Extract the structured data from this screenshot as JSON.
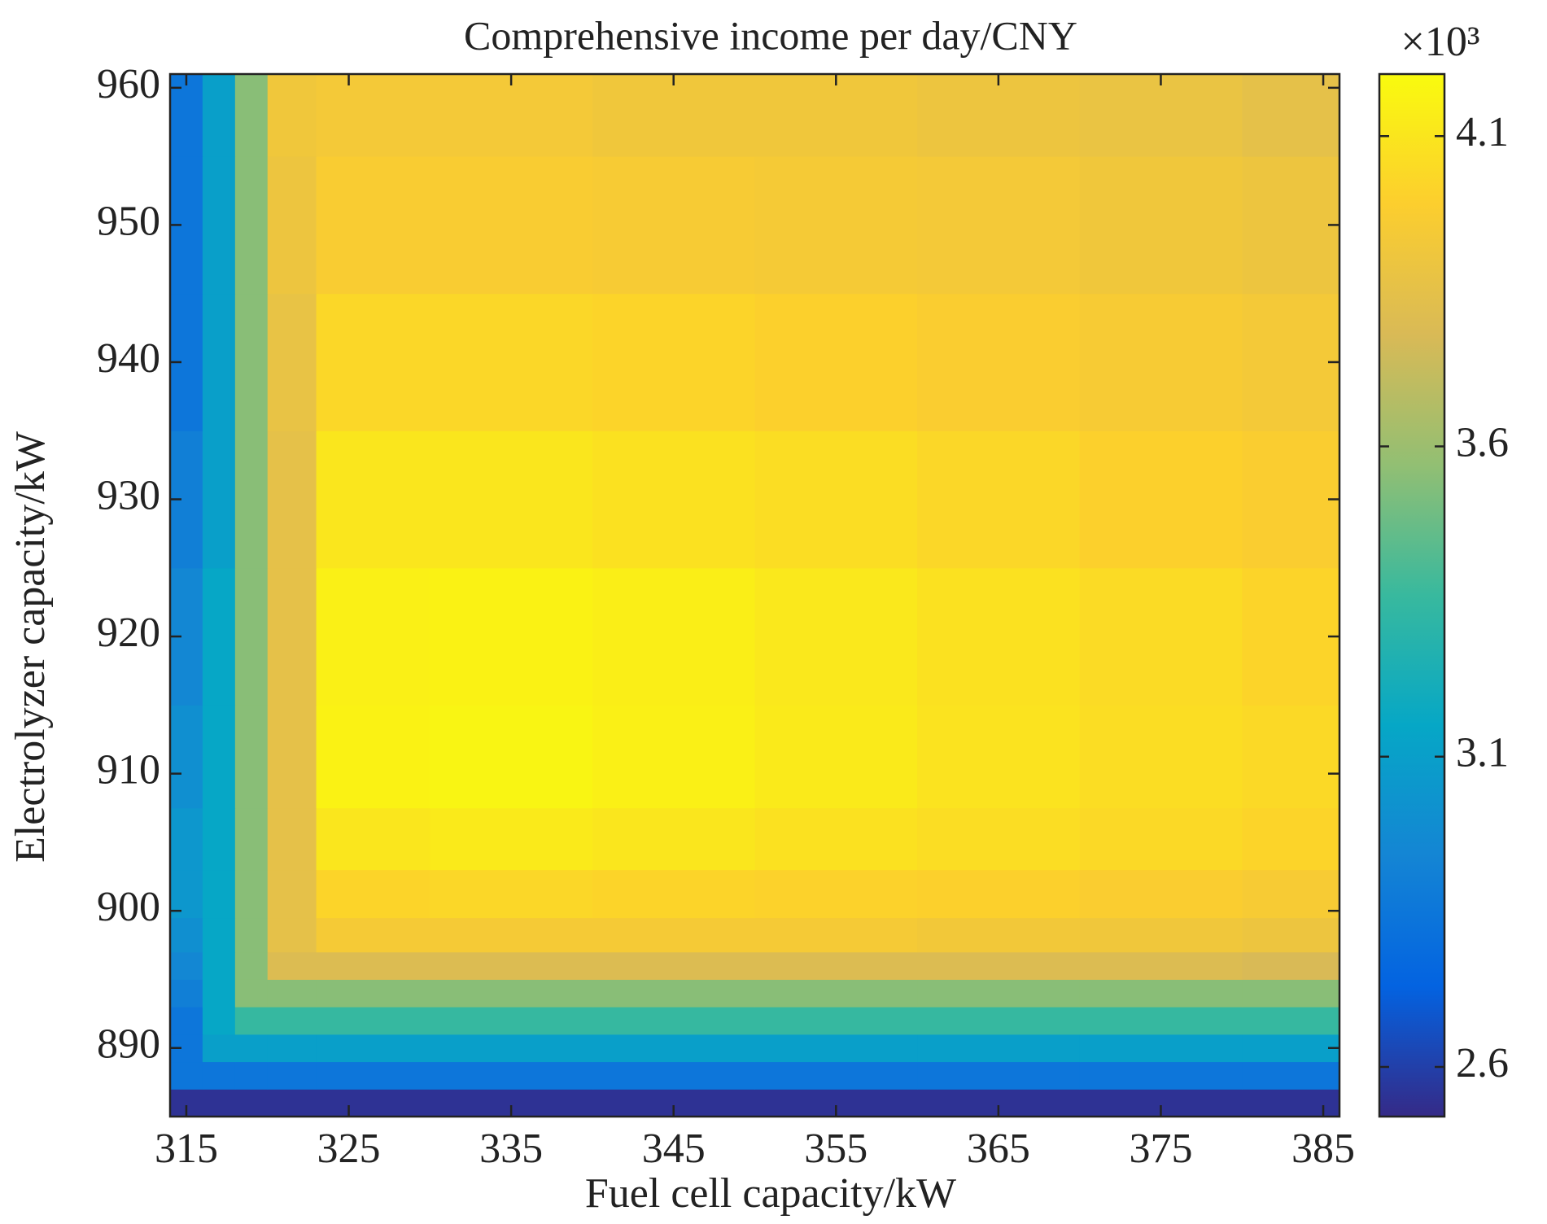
{
  "chart_data": {
    "type": "heatmap",
    "title": "Comprehensive income per day/CNY",
    "x_label": "Fuel cell capacity/kW",
    "y_label": "Electrolyzer capacity/kW",
    "colorbar_multiplier": "×10³",
    "x": [
      315,
      317,
      319,
      321,
      325,
      335,
      345,
      355,
      365,
      375,
      385
    ],
    "y": [
      886,
      888,
      890,
      892,
      894,
      896,
      898,
      901,
      905,
      910,
      920,
      930,
      940,
      950,
      960
    ],
    "values": [
      [
        2.55,
        2.55,
        2.55,
        2.55,
        2.55,
        2.55,
        2.55,
        2.55,
        2.55,
        2.55,
        2.55
      ],
      [
        2.85,
        2.85,
        2.85,
        2.85,
        2.85,
        2.85,
        2.85,
        2.85,
        2.85,
        2.85,
        2.85
      ],
      [
        2.85,
        3.1,
        3.1,
        3.1,
        3.1,
        3.1,
        3.1,
        3.1,
        3.1,
        3.1,
        3.1
      ],
      [
        2.85,
        3.15,
        3.35,
        3.35,
        3.35,
        3.35,
        3.35,
        3.35,
        3.35,
        3.35,
        3.35
      ],
      [
        2.9,
        3.15,
        3.55,
        3.55,
        3.55,
        3.55,
        3.55,
        3.55,
        3.55,
        3.55,
        3.55
      ],
      [
        2.95,
        3.15,
        3.55,
        3.8,
        3.8,
        3.8,
        3.8,
        3.8,
        3.8,
        3.8,
        3.78
      ],
      [
        3.0,
        3.15,
        3.55,
        3.85,
        3.95,
        3.95,
        3.95,
        3.95,
        3.93,
        3.92,
        3.9
      ],
      [
        3.05,
        3.15,
        3.55,
        3.85,
        4.02,
        4.03,
        4.02,
        4.01,
        4.0,
        3.98,
        3.96
      ],
      [
        3.05,
        3.15,
        3.55,
        3.85,
        4.1,
        4.12,
        4.1,
        4.08,
        4.06,
        4.04,
        4.02
      ],
      [
        3.0,
        3.15,
        3.55,
        3.85,
        4.16,
        4.17,
        4.15,
        4.12,
        4.09,
        4.06,
        4.04
      ],
      [
        2.95,
        3.15,
        3.55,
        3.85,
        4.15,
        4.16,
        4.14,
        4.11,
        4.08,
        4.05,
        4.02
      ],
      [
        2.9,
        3.1,
        3.55,
        3.85,
        4.1,
        4.1,
        4.08,
        4.06,
        4.03,
        4.0,
        3.98
      ],
      [
        2.85,
        3.1,
        3.55,
        3.87,
        4.03,
        4.03,
        4.02,
        4.0,
        3.98,
        3.96,
        3.94
      ],
      [
        2.85,
        3.1,
        3.55,
        3.9,
        3.97,
        3.97,
        3.96,
        3.95,
        3.94,
        3.92,
        3.9
      ],
      [
        2.85,
        3.1,
        3.55,
        3.92,
        3.94,
        3.94,
        3.92,
        3.92,
        3.9,
        3.88,
        3.85
      ]
    ],
    "xlim": [
      314,
      386
    ],
    "ylim": [
      885,
      961
    ],
    "xticks": [
      315,
      325,
      335,
      345,
      355,
      365,
      375,
      385
    ],
    "yticks": [
      890,
      900,
      910,
      920,
      930,
      940,
      950,
      960
    ],
    "clim": [
      2.52,
      4.2
    ],
    "cticks": [
      2.6,
      3.1,
      3.6,
      4.1
    ],
    "colormap": [
      "#352a87",
      "#0363e1",
      "#1485d4",
      "#06a7c6",
      "#38b99e",
      "#92bf73",
      "#d9ba56",
      "#fcce2e",
      "#f9fb0e"
    ]
  }
}
